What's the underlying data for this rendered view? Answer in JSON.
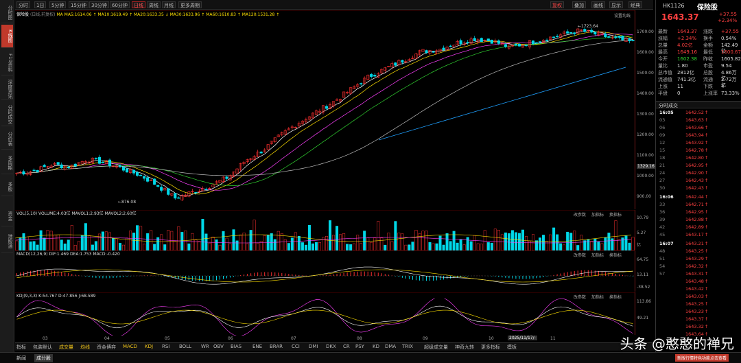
{
  "nav": [
    "分时图",
    "K线图",
    "F10资料",
    "深度资讯",
    "分时成交",
    "分价表",
    "多周期",
    "多股",
    "资金",
    "港股通"
  ],
  "toolbar": {
    "items": [
      "分时",
      "1日",
      "5分钟",
      "15分钟",
      "30分钟",
      "60分钟",
      "日线",
      "周线",
      "月线",
      "更多周期"
    ],
    "active": "日线",
    "right": [
      "复权",
      "叠加",
      "画线",
      "显示",
      "经典"
    ]
  },
  "main": {
    "stock_label": "保险股",
    "stock_sub": "(日线,前复权)",
    "ma_legend": "MA MA5:1614.06 ↑ MA10:1619.49 ↑ MA20:1633.35 ↓ MA30:1633.96 ↑ MA60:1610.83 ↑ MA120:1531.28 ↑",
    "settings": "设置均线",
    "high_label": "1723.64",
    "low_label": "876.08",
    "cur_price_tag": "1329.16"
  },
  "price_axis": [
    "1700.00",
    "1600.00",
    "1500.00",
    "1400.00",
    "1300.00",
    "1200.00",
    "1100.00",
    "1000.00",
    "900.00"
  ],
  "vol": {
    "legend": "VOL(5,10)  VOLUME:4.03亿  MAVOL1:2.93亿  MAVOL2:2.60亿",
    "buttons": [
      "改参数",
      "加指标",
      "换指标"
    ],
    "axis": [
      "10.79",
      "5.27",
      "亿"
    ]
  },
  "macd": {
    "legend": "MACD(12,26,9)  DIF:1.469  DEA:1.753  MACD:-0.420",
    "buttons": [
      "改参数",
      "加指标",
      "换指标"
    ],
    "axis": [
      "64.75",
      "13.11",
      "-38.52"
    ]
  },
  "kdj": {
    "legend": "KDJ(9,3,3)  K:54.767  D:47.856  J:68.589",
    "buttons": [
      "改参数",
      "加指标",
      "换指标"
    ],
    "axis": [
      "113.86",
      "49.21"
    ]
  },
  "x_labels": [
    "03",
    "04",
    "05",
    "06",
    "07",
    "08",
    "09",
    "10",
    "2025/11/17/-",
    "11"
  ],
  "bottom": {
    "tabs": [
      "指标",
      "包装默认",
      "成交量",
      "均线",
      "资金博弈",
      "MACD",
      "KDJ",
      "RSI",
      "BOLL",
      "WR",
      "OBV",
      "BIAS",
      "ENE",
      "BRAR",
      "CCI",
      "DMI",
      "DKX",
      "CR",
      "PSY",
      "KD",
      "DMA",
      "TRIX",
      "超级成交量",
      "神奇九转",
      "更多指标",
      "模板"
    ]
  },
  "quote": {
    "code": "HK1126",
    "name": "保险股",
    "price": "1643.37",
    "chg": "+37.55",
    "pct": "+2.34%",
    "rows": [
      [
        "最新",
        "1643.37",
        "涨跌",
        "+37.55"
      ],
      [
        "涨幅",
        "+2.34%",
        "换手",
        "0.54%"
      ],
      [
        "总量",
        "4.02亿",
        "金额",
        "142.49亿"
      ],
      [
        "最高",
        "1649.16",
        "最低",
        "1600.67"
      ],
      [
        "今开",
        "1602.38",
        "昨收",
        "1605.82"
      ],
      [
        "量比",
        "1.80",
        "市盈",
        "9.54"
      ],
      [
        "总市值",
        "2812亿",
        "总股",
        "4.86万亿"
      ],
      [
        "流通值",
        "741.3亿",
        "流通",
        "2.72万亿"
      ],
      [
        "上涨",
        "11",
        "下跌",
        "4"
      ],
      [
        "平盘",
        "0",
        "上涨率",
        "73.33%"
      ]
    ]
  },
  "ticks": {
    "title": "分时成交",
    "groups": [
      {
        "time": "16:05",
        "rows": [
          "1642.52",
          "1643.63",
          "1643.66",
          "1643.94",
          "1643.92",
          "1642.78",
          "1642.80",
          "1642.95",
          "1642.90",
          "1642.43",
          "1642.43"
        ]
      },
      {
        "time": "16:06",
        "rows": [
          "1642.44",
          "1642.71",
          "1642.95",
          "1642.88",
          "1642.89",
          "1643.17"
        ]
      },
      {
        "time": "16:07",
        "rows": [
          "1643.21",
          "1643.25",
          "1643.29",
          "1642.32",
          "1643.31",
          "1643.48",
          "1643.42",
          "1643.03",
          "1643.25",
          "1643.23",
          "1643.37",
          "1643.32",
          "1643.64"
        ]
      }
    ],
    "subtimes": [
      "03",
      "06",
      "09",
      "12",
      "15",
      "18",
      "21",
      "24",
      "27",
      "30",
      "33",
      "36",
      "39",
      "42",
      "45",
      "48",
      "51",
      "54",
      "57"
    ]
  },
  "footer": {
    "tabs": [
      "新闻",
      "成分股"
    ],
    "notice": "新版行情特色功能点击查看"
  },
  "watermark": "头条 @憨憨的禅兄",
  "chart_data": {
    "type": "candlestick",
    "title": "保险股 (日线,前复权)",
    "x": [
      "03",
      "04",
      "05",
      "06",
      "07",
      "08",
      "09",
      "10",
      "11"
    ],
    "ylim": [
      876.08,
      1723.64
    ],
    "annotations": [
      {
        "label": "1723.64",
        "type": "high"
      },
      {
        "label": "876.08",
        "type": "low"
      }
    ],
    "close_path": [
      1020,
      1030,
      1060,
      1050,
      1085,
      1070,
      1040,
      1010,
      960,
      900,
      930,
      960,
      1000,
      1080,
      1130,
      1200,
      1260,
      1310,
      1360,
      1420,
      1480,
      1520,
      1560,
      1600,
      1610,
      1640,
      1660,
      1650,
      1620,
      1640,
      1660,
      1680,
      1700,
      1680,
      1660,
      1643
    ]
  }
}
